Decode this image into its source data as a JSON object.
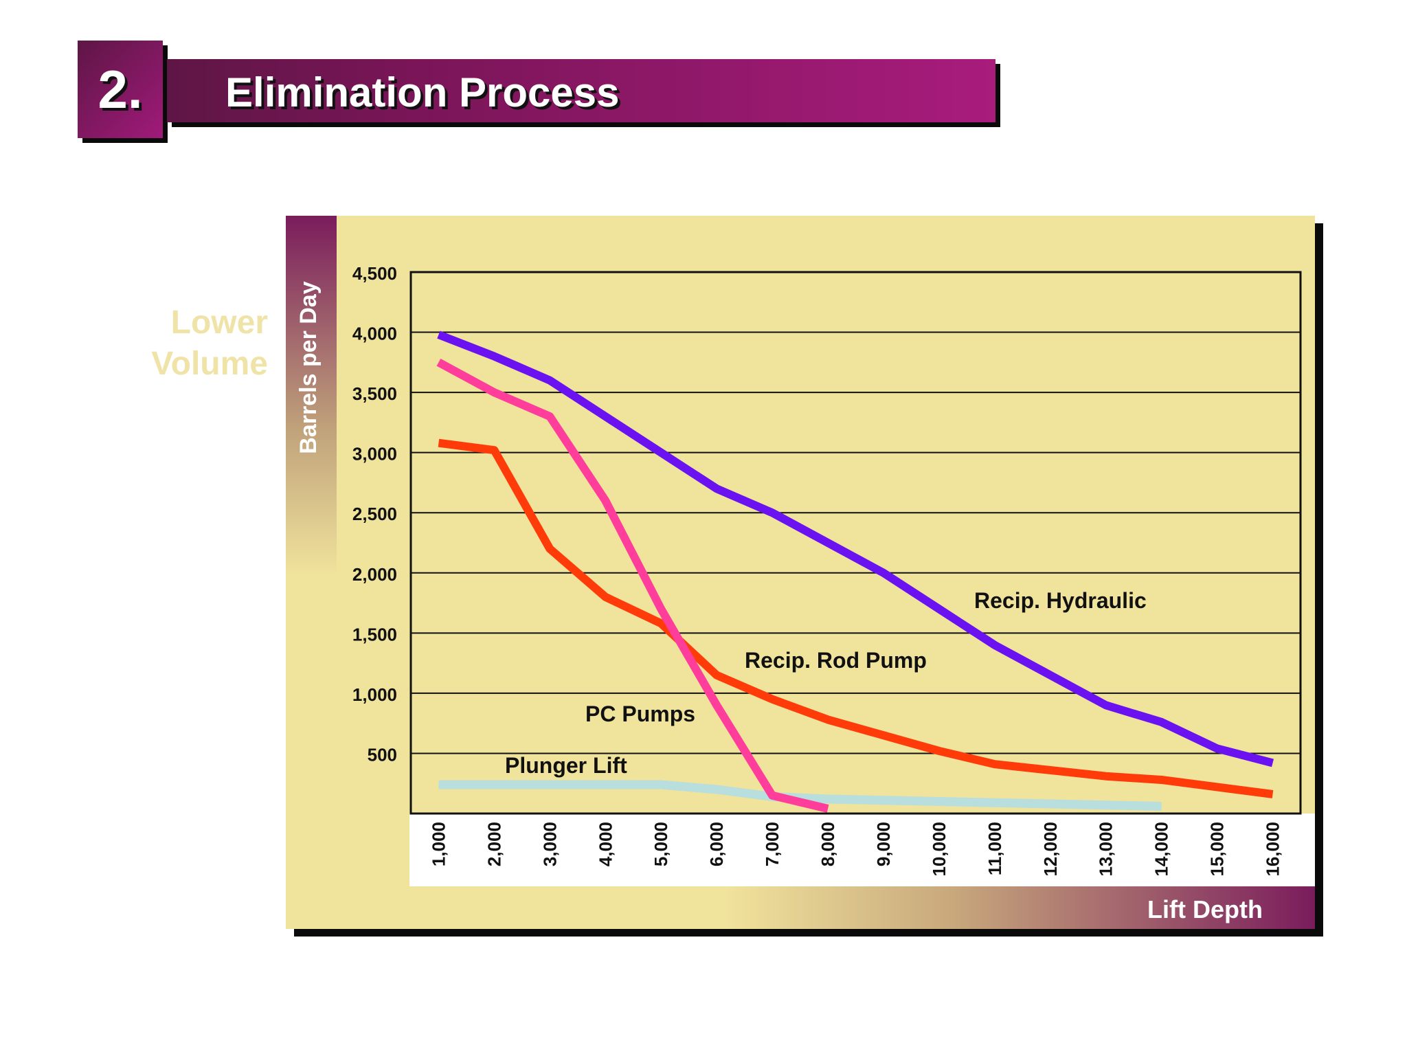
{
  "slide": {
    "number": "2.",
    "title": "Elimination Process",
    "side_label_line1": "Lower",
    "side_label_line2": "Volume"
  },
  "colors": {
    "panel": "#f0e39c",
    "title_gradient_start": "#5e1645",
    "title_gradient_end": "#a81c7c",
    "recip_hydraulic": "#6a12f0",
    "pc_pumps": "#ff3d9a",
    "recip_rod_pump": "#ff3b0a",
    "plunger_lift": "#b8dedd"
  },
  "chart_data": {
    "type": "line",
    "title": "",
    "xlabel": "Lift Depth",
    "ylabel": "Barrels per Day",
    "x": [
      1000,
      2000,
      3000,
      4000,
      5000,
      6000,
      7000,
      8000,
      9000,
      10000,
      11000,
      12000,
      13000,
      14000,
      15000,
      16000
    ],
    "x_tick_labels": [
      "1,000",
      "2,000",
      "3,000",
      "4,000",
      "5,000",
      "6,000",
      "7,000",
      "8,000",
      "9,000",
      "10,000",
      "11,000",
      "12,000",
      "13,000",
      "14,000",
      "15,000",
      "16,000"
    ],
    "y_ticks": [
      500,
      1000,
      1500,
      2000,
      2500,
      3000,
      3500,
      4000,
      4500
    ],
    "y_tick_labels": [
      "500",
      "1,000",
      "1,500",
      "2,000",
      "2,500",
      "3,000",
      "3,500",
      "4,000",
      "4,500"
    ],
    "xlim": [
      500,
      16500
    ],
    "ylim": [
      0,
      4500
    ],
    "grid": true,
    "series": [
      {
        "name": "Recip. Hydraulic",
        "color": "#6a12f0",
        "x": [
          1000,
          2000,
          3000,
          4000,
          5000,
          6000,
          7000,
          8000,
          9000,
          10000,
          11000,
          12000,
          13000,
          14000,
          15000,
          16000
        ],
        "values": [
          3980,
          3800,
          3600,
          3300,
          3000,
          2700,
          2500,
          2250,
          2000,
          1700,
          1400,
          1150,
          900,
          760,
          540,
          420
        ]
      },
      {
        "name": "PC Pumps",
        "color": "#ff3d9a",
        "x": [
          1000,
          2000,
          3000,
          4000,
          5000,
          6000,
          7000,
          8000
        ],
        "values": [
          3750,
          3500,
          3300,
          2600,
          1700,
          900,
          150,
          40
        ]
      },
      {
        "name": "Recip. Rod Pump",
        "color": "#ff3b0a",
        "x": [
          1000,
          2000,
          3000,
          4000,
          5000,
          6000,
          7000,
          8000,
          9000,
          10000,
          11000,
          12000,
          13000,
          14000,
          15000,
          16000
        ],
        "values": [
          3080,
          3020,
          2200,
          1800,
          1580,
          1150,
          950,
          780,
          650,
          520,
          410,
          360,
          310,
          280,
          220,
          160
        ]
      },
      {
        "name": "Plunger Lift",
        "color": "#b8dedd",
        "x": [
          1000,
          2000,
          3000,
          4000,
          5000,
          6000,
          7000,
          8000,
          9000,
          10000,
          11000,
          12000,
          13000,
          14000
        ],
        "values": [
          240,
          240,
          240,
          240,
          240,
          200,
          140,
          120,
          110,
          100,
          90,
          80,
          70,
          60
        ]
      }
    ]
  }
}
